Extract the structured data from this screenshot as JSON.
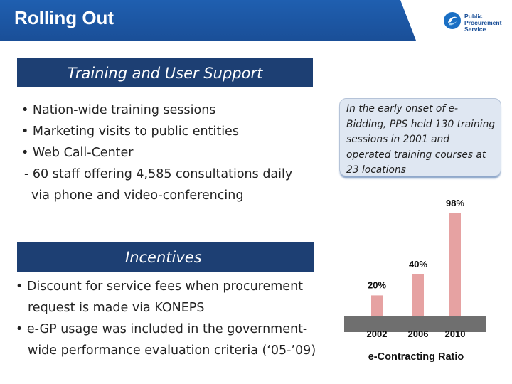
{
  "slide": {
    "title": "Rolling Out",
    "logo": {
      "line1": "Public",
      "line2": "Procurement",
      "line3": "Service",
      "icon": "pps-logo-icon",
      "color": "#1a4f98"
    }
  },
  "training": {
    "header": "Training and User Support",
    "bullets": [
      "• Nation-wide training sessions",
      "• Marketing visits to public entities",
      "• Web Call-Center",
      "- 60 staff offering 4,585 consultations daily",
      "via phone and video-conferencing"
    ]
  },
  "callout": {
    "text": "In the early onset of e-Bidding, PPS held 130 training sessions in 2001 and operated training courses at 23 locations"
  },
  "incentives": {
    "header": "Incentives",
    "bullets": [
      "• Discount for service fees when procurement request is made via KONEPS",
      "• e-GP usage was included in the government-wide performance evaluation criteria (‘05-’09)"
    ]
  },
  "colors": {
    "title_bar": "#1f5fb0",
    "section_header": "#1d3f73",
    "bar_fill": "#e6a2a2"
  },
  "chart_data": {
    "type": "bar",
    "categories": [
      "2002",
      "2006",
      "2010"
    ],
    "values": [
      20,
      40,
      98
    ],
    "value_labels": [
      "20%",
      "40%",
      "98%"
    ],
    "title": "e-Contracting Ratio",
    "xlabel": "",
    "ylabel": "",
    "ylim": [
      0,
      100
    ],
    "grid": false,
    "legend": "none"
  }
}
